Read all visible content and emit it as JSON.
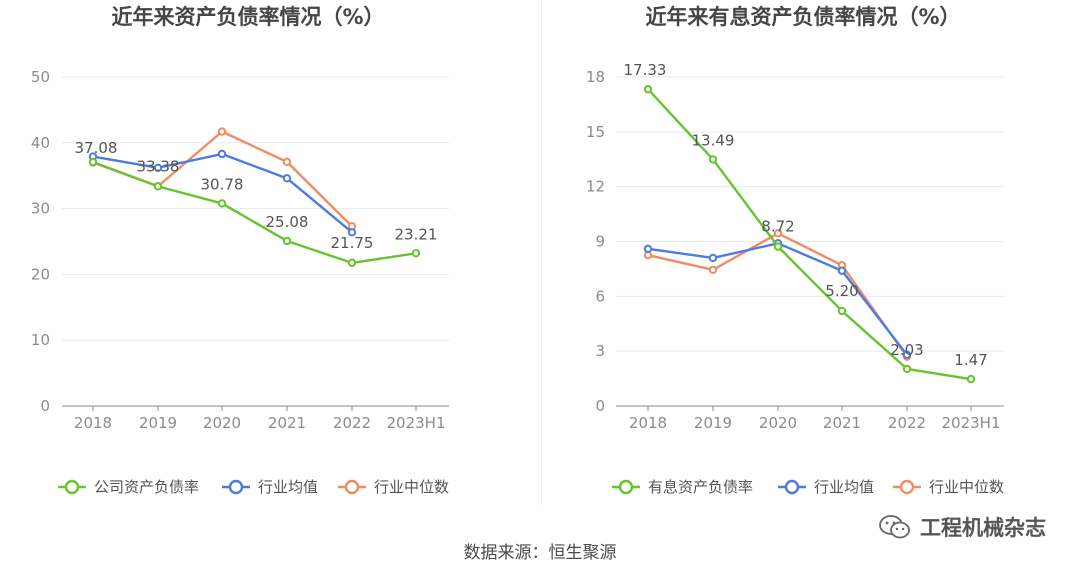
{
  "colors": {
    "company": "#66c42d",
    "industry_avg": "#4d7be0",
    "industry_median": "#f08c62",
    "grid": "#e6e9f2",
    "axis": "#888888"
  },
  "chart_data": [
    {
      "type": "line",
      "title": "近年来资产负债率情况（%）",
      "categories": [
        "2018",
        "2019",
        "2020",
        "2021",
        "2022",
        "2023H1"
      ],
      "ylim": [
        0,
        50
      ],
      "yticks": [
        0,
        10,
        20,
        30,
        40,
        50
      ],
      "grid": true,
      "legend_position": "bottom",
      "series": [
        {
          "name": "公司资产负债率",
          "color_key": "company",
          "values": [
            37.08,
            33.38,
            30.78,
            25.08,
            21.75,
            23.21
          ],
          "labels": [
            "37.08",
            "33.38",
            "30.78",
            "25.08",
            "21.75",
            "23.21"
          ]
        },
        {
          "name": "行业均值",
          "color_key": "industry_avg",
          "values": [
            37.9,
            36.2,
            38.3,
            34.6,
            26.4,
            null
          ]
        },
        {
          "name": "行业中位数",
          "color_key": "industry_median",
          "values": [
            37.0,
            33.4,
            41.7,
            37.1,
            27.3,
            null
          ]
        }
      ]
    },
    {
      "type": "line",
      "title": "近年来有息资产负债率情况（%）",
      "categories": [
        "2018",
        "2019",
        "2020",
        "2021",
        "2022",
        "2023H1"
      ],
      "ylim": [
        0,
        18
      ],
      "yticks": [
        0,
        3,
        6,
        9,
        12,
        15,
        18
      ],
      "grid": true,
      "legend_position": "bottom",
      "series": [
        {
          "name": "有息资产负债率",
          "color_key": "company",
          "values": [
            17.33,
            13.49,
            8.72,
            5.2,
            2.03,
            1.47
          ],
          "labels": [
            "17.33",
            "13.49",
            "8.72",
            "5.20",
            "2.03",
            "1.47"
          ]
        },
        {
          "name": "行业均值",
          "color_key": "industry_avg",
          "values": [
            8.6,
            8.1,
            8.9,
            7.4,
            2.8,
            null
          ]
        },
        {
          "name": "行业中位数",
          "color_key": "industry_median",
          "values": [
            8.25,
            7.45,
            9.45,
            7.7,
            2.7,
            null
          ]
        }
      ]
    }
  ],
  "footer": {
    "source": "数据来源：恒生聚源",
    "watermark_text": "工程机械杂志",
    "watermark_icon": "wechat-icon"
  }
}
